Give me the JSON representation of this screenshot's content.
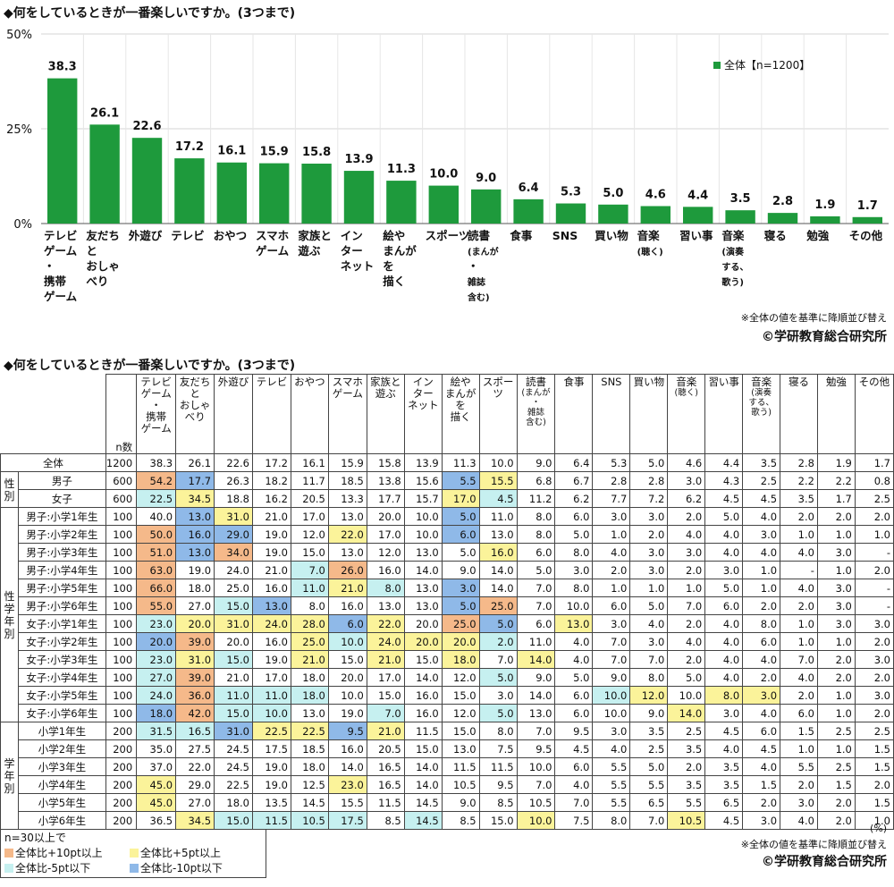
{
  "chart_title": "◆何をしているときが一番楽しいですか。(3つまで)",
  "table_title": "◆何をしているときが一番楽しいですか。(3つまで)",
  "note": "※全体の値を基準に降順並び替え",
  "copyright": "©学研教育総合研究所",
  "percent_unit": "(%)",
  "colors": {
    "bar": "#1e9a3c",
    "up10": "#f5b98a",
    "up5": "#fbf39a",
    "dn5": "#c6f0f0",
    "dn10": "#8fb9e8"
  },
  "chart_data": {
    "type": "bar",
    "categories": [
      "テレビゲーム・携帯ゲーム",
      "友だちとおしゃべり",
      "外遊び",
      "テレビ",
      "おやつ",
      "スマホゲーム",
      "家族と遊ぶ",
      "インターネット",
      "絵やまんがを描く",
      "スポーツ",
      "読書(まんが・雑誌含む)",
      "食事",
      "SNS",
      "買い物",
      "音楽(聴く)",
      "習い事",
      "音楽(演奏する、歌う)",
      "寝る",
      "勉強",
      "その他"
    ],
    "category_lines": [
      [
        "テレビ",
        "ゲーム",
        "・",
        "携帯",
        "ゲーム"
      ],
      [
        "友だち",
        "と",
        "おしゃ",
        "べり"
      ],
      [
        "外遊び"
      ],
      [
        "テレビ"
      ],
      [
        "おやつ"
      ],
      [
        "スマホ",
        "ゲーム"
      ],
      [
        "家族と",
        "遊ぶ"
      ],
      [
        "イン",
        "ター",
        "ネット"
      ],
      [
        "絵や",
        "まんが",
        "を",
        "描く"
      ],
      [
        "スポーツ"
      ],
      [
        "読書",
        "(まんが",
        "・",
        "雑誌",
        "含む)"
      ],
      [
        "食事"
      ],
      [
        "SNS"
      ],
      [
        "買い物"
      ],
      [
        "音楽",
        "(聴く)"
      ],
      [
        "習い事"
      ],
      [
        "音楽",
        "(演奏",
        "する、",
        "歌う)"
      ],
      [
        "寝る"
      ],
      [
        "勉強"
      ],
      [
        "その他"
      ]
    ],
    "series": [
      {
        "name": "全体【n=1200】",
        "values": [
          38.3,
          26.1,
          22.6,
          17.2,
          16.1,
          15.9,
          15.8,
          13.9,
          11.3,
          10.0,
          9.0,
          6.4,
          5.3,
          5.0,
          4.6,
          4.4,
          3.5,
          2.8,
          1.9,
          1.7
        ]
      }
    ],
    "value_labels": [
      "38.3",
      "26.1",
      "22.6",
      "17.2",
      "16.1",
      "15.9",
      "15.8",
      "13.9",
      "11.3",
      "10.0",
      "9.0",
      "6.4",
      "5.3",
      "5.0",
      "4.6",
      "4.4",
      "3.5",
      "2.8",
      "1.9",
      "1.7"
    ],
    "yticks": [
      "0%",
      "25%",
      "50%"
    ],
    "ylim": [
      0,
      50
    ],
    "grid": true,
    "legend": "top-right"
  },
  "table": {
    "n_label": "n数",
    "headers": [
      [
        "テレビ",
        "ゲーム",
        "・",
        "携帯",
        "ゲーム"
      ],
      [
        "友だち",
        "と",
        "おしゃ",
        "べり"
      ],
      [
        "外遊び"
      ],
      [
        "テレビ"
      ],
      [
        "おやつ"
      ],
      [
        "スマホ",
        "ゲーム"
      ],
      [
        "家族と",
        "遊ぶ"
      ],
      [
        "イン",
        "ター",
        "ネット"
      ],
      [
        "絵や",
        "まんが",
        "を",
        "描く"
      ],
      [
        "スポー",
        "ツ"
      ],
      [
        "読書",
        "(まんが",
        "・",
        "雑誌",
        "含む)"
      ],
      [
        "食事"
      ],
      [
        "SNS"
      ],
      [
        "買い物"
      ],
      [
        "音楽",
        "(聴く)"
      ],
      [
        "習い事"
      ],
      [
        "音楽",
        "(演奏",
        "する、",
        "歌う)"
      ],
      [
        "寝る"
      ],
      [
        "勉強"
      ],
      [
        "その他"
      ]
    ],
    "header_small": [
      [],
      [],
      [],
      [],
      [],
      [],
      [],
      [],
      [],
      [],
      [
        1,
        2,
        3,
        4
      ],
      [],
      [],
      [],
      [
        1
      ],
      [],
      [
        1,
        2,
        3
      ],
      [],
      [],
      []
    ],
    "groups": [
      {
        "label": "",
        "rows": [
          {
            "label": "全体",
            "n": "1200",
            "v": [
              "38.3",
              "26.1",
              "22.6",
              "17.2",
              "16.1",
              "15.9",
              "15.8",
              "13.9",
              "11.3",
              "10.0",
              "9.0",
              "6.4",
              "5.3",
              "5.0",
              "4.6",
              "4.4",
              "3.5",
              "2.8",
              "1.9",
              "1.7"
            ],
            "h": "____________________"
          }
        ]
      },
      {
        "label": "性別",
        "rows": [
          {
            "label": "男子",
            "n": "600",
            "v": [
              "54.2",
              "17.7",
              "26.3",
              "18.2",
              "11.7",
              "18.5",
              "13.8",
              "15.6",
              "5.5",
              "15.5",
              "6.8",
              "6.7",
              "2.8",
              "2.8",
              "3.0",
              "4.3",
              "2.5",
              "2.2",
              "2.2",
              "0.8"
            ],
            "h": "ul______ly__________"
          },
          {
            "label": "女子",
            "n": "600",
            "v": [
              "22.5",
              "34.5",
              "18.8",
              "16.2",
              "20.5",
              "13.3",
              "17.7",
              "15.7",
              "17.0",
              "4.5",
              "11.2",
              "6.2",
              "7.7",
              "7.2",
              "6.2",
              "4.5",
              "4.5",
              "3.5",
              "1.7",
              "2.5"
            ],
            "h": "cy______yc__________"
          }
        ]
      },
      {
        "label": "性学年別",
        "rows": [
          {
            "label": "男子:小学1年生",
            "n": "100",
            "v": [
              "40.0",
              "13.0",
              "31.0",
              "21.0",
              "17.0",
              "13.0",
              "20.0",
              "10.0",
              "5.0",
              "11.0",
              "8.0",
              "6.0",
              "3.0",
              "3.0",
              "2.0",
              "5.0",
              "4.0",
              "2.0",
              "2.0",
              "2.0"
            ],
            "h": "_by_____l__________"
          },
          {
            "label": "男子:小学2年生",
            "n": "100",
            "v": [
              "50.0",
              "16.0",
              "29.0",
              "19.0",
              "12.0",
              "22.0",
              "17.0",
              "10.0",
              "6.0",
              "13.0",
              "8.0",
              "5.0",
              "1.0",
              "2.0",
              "4.0",
              "4.0",
              "3.0",
              "1.0",
              "1.0",
              "1.0"
            ],
            "h": "ubl__y__l__________"
          },
          {
            "label": "男子:小学3年生",
            "n": "100",
            "v": [
              "51.0",
              "13.0",
              "34.0",
              "19.0",
              "15.0",
              "13.0",
              "12.0",
              "13.0",
              "5.0",
              "16.0",
              "6.0",
              "8.0",
              "4.0",
              "3.0",
              "3.0",
              "4.0",
              "4.0",
              "4.0",
              "3.0",
              "-"
            ],
            "h": "ubu______y__________"
          },
          {
            "label": "男子:小学4年生",
            "n": "100",
            "v": [
              "63.0",
              "19.0",
              "24.0",
              "21.0",
              "7.0",
              "26.0",
              "16.0",
              "14.0",
              "9.0",
              "14.0",
              "5.0",
              "3.0",
              "2.0",
              "3.0",
              "2.0",
              "3.0",
              "1.0",
              "-",
              "1.0",
              "2.0"
            ],
            "h": "u___cu______________"
          },
          {
            "label": "男子:小学5年生",
            "n": "100",
            "v": [
              "66.0",
              "18.0",
              "25.0",
              "16.0",
              "11.0",
              "21.0",
              "8.0",
              "13.0",
              "3.0",
              "14.0",
              "7.0",
              "8.0",
              "1.0",
              "1.0",
              "1.0",
              "5.0",
              "1.0",
              "4.0",
              "3.0",
              "-"
            ],
            "h": "u___cyc_l___________"
          },
          {
            "label": "男子:小学6年生",
            "n": "100",
            "v": [
              "55.0",
              "27.0",
              "15.0",
              "13.0",
              "8.0",
              "16.0",
              "13.0",
              "13.0",
              "5.0",
              "25.0",
              "7.0",
              "10.0",
              "6.0",
              "5.0",
              "7.0",
              "6.0",
              "2.0",
              "2.0",
              "3.0",
              "-"
            ],
            "h": "u_cl____lu__________"
          },
          {
            "label": "女子:小学1年生",
            "n": "100",
            "v": [
              "23.0",
              "20.0",
              "31.0",
              "24.0",
              "28.0",
              "6.0",
              "22.0",
              "20.0",
              "25.0",
              "5.0",
              "6.0",
              "13.0",
              "3.0",
              "4.0",
              "2.0",
              "4.0",
              "8.0",
              "1.0",
              "3.0",
              "3.0"
            ],
            "h": "cyyyyby_ul_y________"
          },
          {
            "label": "女子:小学2年生",
            "n": "100",
            "v": [
              "20.0",
              "39.0",
              "20.0",
              "16.0",
              "25.0",
              "10.0",
              "24.0",
              "20.0",
              "20.0",
              "2.0",
              "11.0",
              "4.0",
              "7.0",
              "3.0",
              "4.0",
              "4.0",
              "6.0",
              "1.0",
              "1.0",
              "2.0"
            ],
            "h": "bu__ycyyyc__________"
          },
          {
            "label": "女子:小学3年生",
            "n": "100",
            "v": [
              "23.0",
              "31.0",
              "15.0",
              "19.0",
              "21.0",
              "15.0",
              "21.0",
              "15.0",
              "18.0",
              "7.0",
              "14.0",
              "4.0",
              "7.0",
              "7.0",
              "2.0",
              "4.0",
              "4.0",
              "7.0",
              "2.0",
              "3.0"
            ],
            "h": "cyc_y_y_y_y_________"
          },
          {
            "label": "女子:小学4年生",
            "n": "100",
            "v": [
              "27.0",
              "39.0",
              "21.0",
              "17.0",
              "18.0",
              "20.0",
              "17.0",
              "14.0",
              "12.0",
              "5.0",
              "9.0",
              "5.0",
              "9.0",
              "8.0",
              "5.0",
              "4.0",
              "2.0",
              "4.0",
              "2.0",
              "2.0"
            ],
            "h": "cu_______c__________"
          },
          {
            "label": "女子:小学5年生",
            "n": "100",
            "v": [
              "24.0",
              "36.0",
              "11.0",
              "11.0",
              "18.0",
              "10.0",
              "15.0",
              "16.0",
              "15.0",
              "3.0",
              "14.0",
              "6.0",
              "10.0",
              "12.0",
              "10.0",
              "8.0",
              "3.0",
              "2.0",
              "1.0",
              "3.0"
            ],
            "h": "cuccc_______cy_yy____"
          },
          {
            "label": "女子:小学6年生",
            "n": "100",
            "v": [
              "18.0",
              "42.0",
              "15.0",
              "10.0",
              "13.0",
              "19.0",
              "7.0",
              "16.0",
              "12.0",
              "5.0",
              "13.0",
              "6.0",
              "10.0",
              "9.0",
              "14.0",
              "3.0",
              "4.0",
              "6.0",
              "1.0",
              "2.0"
            ],
            "h": "bucc__c__c____y_____"
          }
        ]
      },
      {
        "label": "学年別",
        "rows": [
          {
            "label": "小学1年生",
            "n": "200",
            "v": [
              "31.5",
              "16.5",
              "31.0",
              "22.5",
              "22.5",
              "9.5",
              "21.0",
              "11.5",
              "15.0",
              "8.0",
              "7.0",
              "9.5",
              "3.0",
              "3.5",
              "2.5",
              "4.5",
              "6.0",
              "1.5",
              "2.5",
              "2.5"
            ],
            "h": "cclyyby_____________"
          },
          {
            "label": "小学2年生",
            "n": "200",
            "v": [
              "35.0",
              "27.5",
              "24.5",
              "17.5",
              "18.5",
              "16.0",
              "20.5",
              "15.0",
              "13.0",
              "7.5",
              "9.5",
              "4.5",
              "4.0",
              "2.5",
              "3.5",
              "4.0",
              "4.5",
              "1.0",
              "1.0",
              "1.5"
            ],
            "h": "____________________"
          },
          {
            "label": "小学3年生",
            "n": "200",
            "v": [
              "37.0",
              "22.0",
              "24.5",
              "19.0",
              "18.0",
              "14.0",
              "16.5",
              "14.0",
              "11.5",
              "11.5",
              "10.0",
              "6.0",
              "5.5",
              "5.0",
              "2.0",
              "3.5",
              "4.0",
              "5.5",
              "2.5",
              "1.5"
            ],
            "h": "____________________"
          },
          {
            "label": "小学4年生",
            "n": "200",
            "v": [
              "45.0",
              "29.0",
              "22.5",
              "19.0",
              "12.5",
              "23.0",
              "16.5",
              "14.0",
              "10.5",
              "9.5",
              "7.0",
              "4.0",
              "5.5",
              "5.5",
              "3.5",
              "3.5",
              "1.5",
              "2.0",
              "1.5",
              "2.0"
            ],
            "h": "y____y______________"
          },
          {
            "label": "小学5年生",
            "n": "200",
            "v": [
              "45.0",
              "27.0",
              "18.0",
              "13.5",
              "14.5",
              "15.5",
              "11.5",
              "14.5",
              "9.0",
              "8.5",
              "10.5",
              "7.0",
              "5.5",
              "6.5",
              "5.5",
              "6.5",
              "2.0",
              "3.0",
              "2.0",
              "1.5"
            ],
            "h": "y___________________"
          },
          {
            "label": "小学6年生",
            "n": "200",
            "v": [
              "36.5",
              "34.5",
              "15.0",
              "11.5",
              "10.5",
              "17.5",
              "8.5",
              "14.5",
              "8.5",
              "15.0",
              "10.0",
              "7.5",
              "8.0",
              "7.0",
              "10.5",
              "4.5",
              "3.0",
              "4.0",
              "2.0",
              "1.0"
            ],
            "h": "_ycccc_c__y___y_____"
          }
        ]
      }
    ]
  },
  "legend": {
    "title": "n=30以上で",
    "items": [
      {
        "label": "全体比+10pt以上",
        "color": "#f5b98a"
      },
      {
        "label": "全体比+5pt以上",
        "color": "#fbf39a"
      },
      {
        "label": "全体比-5pt以下",
        "color": "#c6f0f0"
      },
      {
        "label": "全体比-10pt以下",
        "color": "#8fb9e8"
      }
    ]
  }
}
